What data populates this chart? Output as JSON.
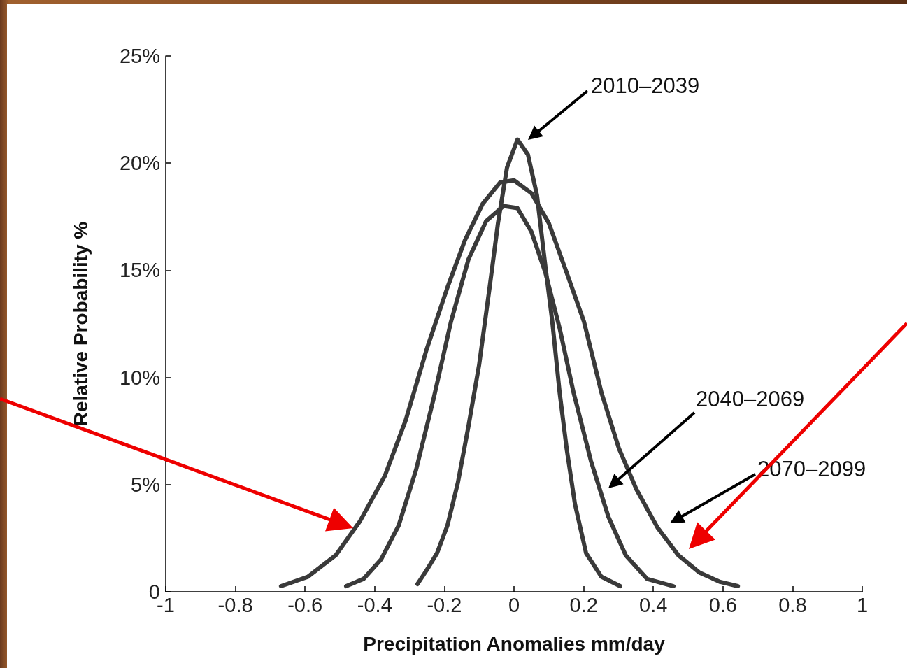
{
  "chart_data": {
    "type": "line",
    "xlabel": "Precipitation Anomalies mm/day",
    "ylabel": "Relative Probability %",
    "xlim": [
      -1,
      1
    ],
    "xticks": [
      -1,
      -0.8,
      -0.6,
      -0.4,
      -0.2,
      0,
      0.2,
      0.4,
      0.6,
      0.8,
      1
    ],
    "ylim": [
      0,
      25
    ],
    "yticks": [
      {
        "value": 0,
        "label": "0"
      },
      {
        "value": 5,
        "label": "5%"
      },
      {
        "value": 10,
        "label": "10%"
      },
      {
        "value": 15,
        "label": "15%"
      },
      {
        "value": 20,
        "label": "20%"
      },
      {
        "value": 25,
        "label": "25%"
      }
    ],
    "grid": false,
    "marker": "none",
    "line_style": "solid",
    "annotations": [
      "2010–2039",
      "2040–2069",
      "2070–2099"
    ],
    "series": [
      {
        "color": "#3a3a3a",
        "x": [
          -0.277,
          -0.251,
          -0.221,
          -0.191,
          -0.161,
          -0.131,
          -0.1,
          -0.07,
          -0.046,
          -0.02,
          0.01,
          0.04,
          0.066,
          0.09,
          0.11,
          0.131,
          0.151,
          0.175,
          0.207,
          0.251,
          0.305
        ],
        "values": [
          0.36,
          1.0,
          1.8,
          3.1,
          5.1,
          7.7,
          10.6,
          14.2,
          17.2,
          19.8,
          21.1,
          20.4,
          18.5,
          15.2,
          12.6,
          9.3,
          6.7,
          4.1,
          1.8,
          0.7,
          0.26
        ]
      },
      {
        "color": "#3a3a3a",
        "x": [
          -0.482,
          -0.432,
          -0.382,
          -0.331,
          -0.281,
          -0.231,
          -0.181,
          -0.131,
          -0.08,
          -0.03,
          0.01,
          0.05,
          0.09,
          0.131,
          0.171,
          0.221,
          0.271,
          0.321,
          0.382,
          0.458
        ],
        "values": [
          0.26,
          0.6,
          1.5,
          3.1,
          5.7,
          9.0,
          12.6,
          15.5,
          17.3,
          18.0,
          17.9,
          16.8,
          14.9,
          12.3,
          9.3,
          6.1,
          3.5,
          1.7,
          0.6,
          0.26
        ]
      },
      {
        "color": "#3a3a3a",
        "x": [
          -0.669,
          -0.592,
          -0.512,
          -0.442,
          -0.371,
          -0.311,
          -0.251,
          -0.191,
          -0.141,
          -0.09,
          -0.04,
          0.0,
          0.05,
          0.1,
          0.151,
          0.201,
          0.251,
          0.301,
          0.351,
          0.412,
          0.472,
          0.532,
          0.592,
          0.643
        ],
        "values": [
          0.26,
          0.7,
          1.7,
          3.3,
          5.4,
          8.0,
          11.3,
          14.2,
          16.4,
          18.1,
          19.1,
          19.2,
          18.6,
          17.2,
          14.9,
          12.6,
          9.3,
          6.7,
          4.8,
          3.0,
          1.7,
          0.9,
          0.46,
          0.26
        ]
      }
    ]
  }
}
